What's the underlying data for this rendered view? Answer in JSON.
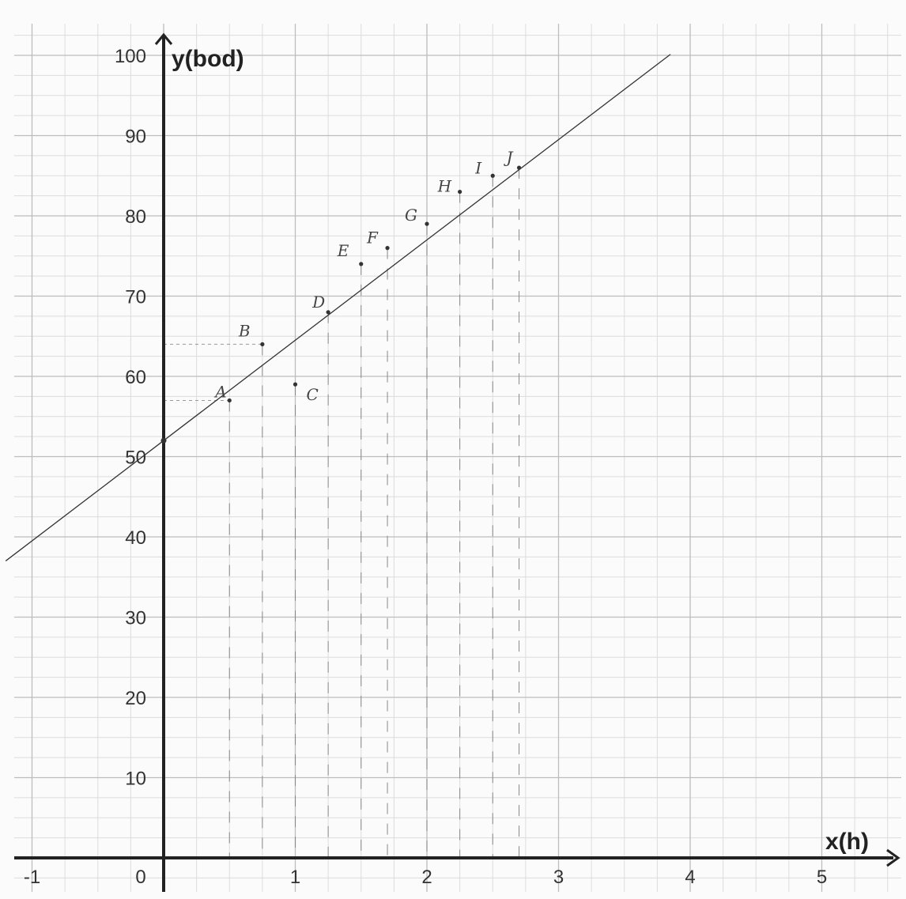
{
  "chart_data": {
    "type": "scatter",
    "xlabel": "x(h)",
    "ylabel": "y(bod)",
    "xlim": [
      -1.2,
      5.6
    ],
    "ylim": [
      0,
      100
    ],
    "grid": true,
    "x_ticks": [
      -1,
      0,
      1,
      2,
      3,
      4,
      5
    ],
    "x_tick_labels": [
      "-1",
      "0",
      "1",
      "2",
      "3",
      "4",
      "5"
    ],
    "y_ticks": [
      10,
      20,
      30,
      40,
      50,
      60,
      70,
      80,
      90,
      100
    ],
    "y_tick_labels": [
      "10",
      "20",
      "30",
      "40",
      "50",
      "60",
      "70",
      "80",
      "90",
      "100"
    ],
    "points": [
      {
        "label": "A",
        "x": 0.5,
        "y": 57
      },
      {
        "label": "B",
        "x": 0.75,
        "y": 64
      },
      {
        "label": "C",
        "x": 1.0,
        "y": 59
      },
      {
        "label": "D",
        "x": 1.25,
        "y": 68
      },
      {
        "label": "E",
        "x": 1.5,
        "y": 74
      },
      {
        "label": "F",
        "x": 1.7,
        "y": 76
      },
      {
        "label": "G",
        "x": 2.0,
        "y": 79
      },
      {
        "label": "H",
        "x": 2.25,
        "y": 83
      },
      {
        "label": "I",
        "x": 2.5,
        "y": 85
      },
      {
        "label": "J",
        "x": 2.7,
        "y": 86
      }
    ],
    "regression_line": {
      "intercept": 52,
      "slope": 12.5,
      "x_range": [
        -1.2,
        3.85
      ]
    }
  }
}
